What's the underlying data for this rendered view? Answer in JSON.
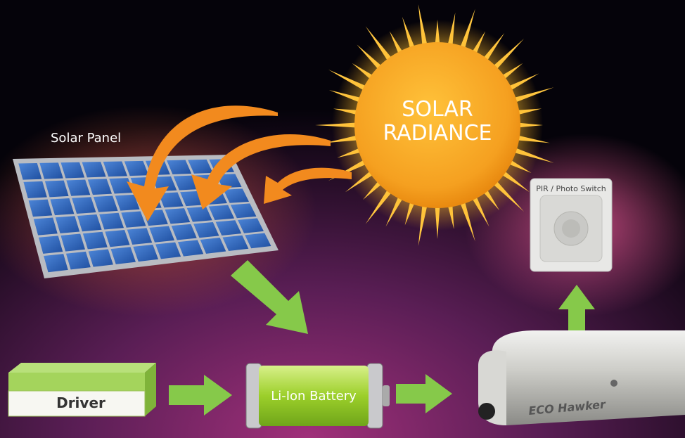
{
  "nodes": [
    {
      "label": "Solar Panel"
    },
    {
      "lines": [
        "SOLAR",
        "RADIANCE"
      ]
    },
    {
      "label": "PIR / Photo Switch"
    },
    {
      "label": "Driver"
    },
    {
      "label": "Li-Ion Battery"
    },
    {
      "label": "ECO Hawker"
    }
  ]
}
